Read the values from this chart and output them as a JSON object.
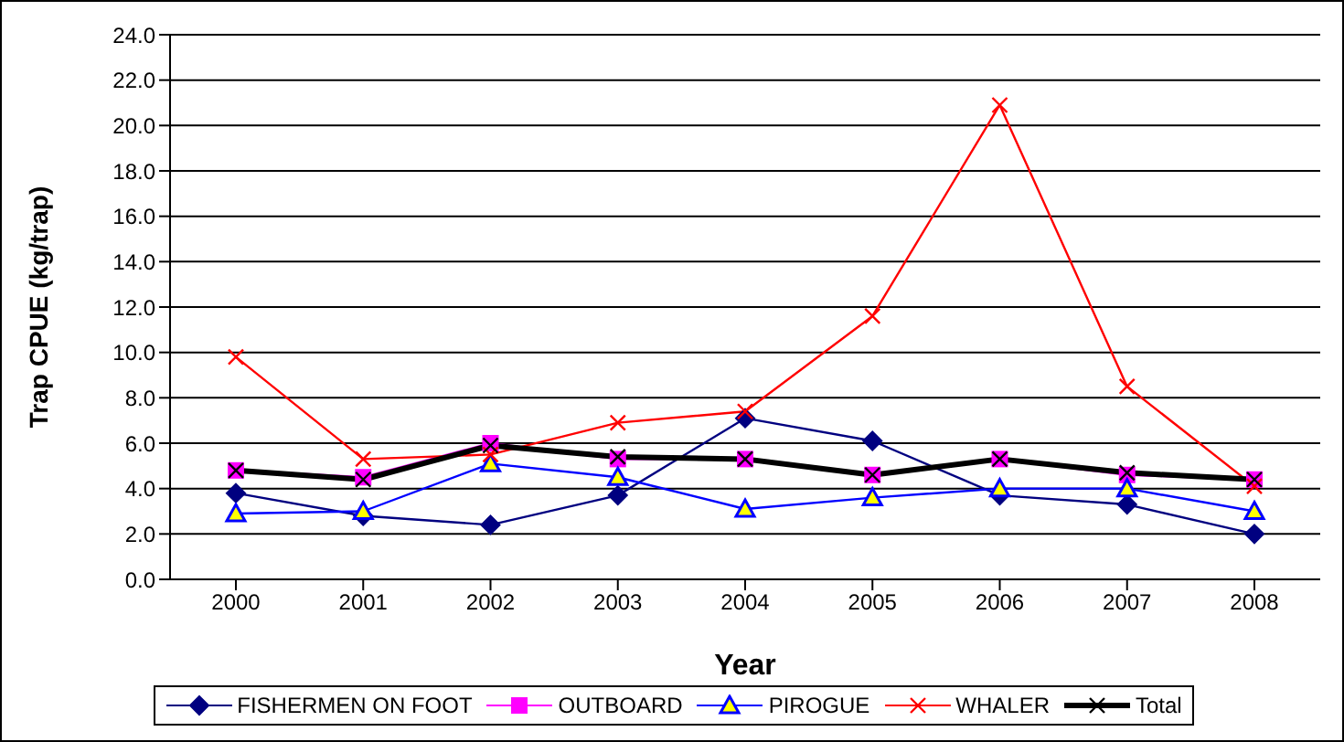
{
  "chart_data": {
    "type": "line",
    "xlabel": "Year",
    "ylabel": "Trap CPUE (kg/trap)",
    "categories": [
      "2000",
      "2001",
      "2002",
      "2003",
      "2004",
      "2005",
      "2006",
      "2007",
      "2008"
    ],
    "ylim": [
      0,
      24
    ],
    "yticks": [
      {
        "value": 0,
        "label": "0.0"
      },
      {
        "value": 2,
        "label": "2.0"
      },
      {
        "value": 4,
        "label": "4.0"
      },
      {
        "value": 6,
        "label": "6.0"
      },
      {
        "value": 8,
        "label": "8.0"
      },
      {
        "value": 10,
        "label": "10.0"
      },
      {
        "value": 12,
        "label": "12.0"
      },
      {
        "value": 14,
        "label": "14.0"
      },
      {
        "value": 16,
        "label": "16.0"
      },
      {
        "value": 18,
        "label": "18.0"
      },
      {
        "value": 20,
        "label": "20.0"
      },
      {
        "value": 22,
        "label": "22.0"
      },
      {
        "value": 24,
        "label": "24.0"
      }
    ],
    "grid": "y",
    "legend": "bottom",
    "line_style": "solid",
    "series": [
      {
        "name": "FISHERMEN ON FOOT",
        "color": "#000080",
        "marker": "diamond",
        "values": [
          3.8,
          2.8,
          2.4,
          3.7,
          7.1,
          6.1,
          3.7,
          3.3,
          2.0
        ]
      },
      {
        "name": "OUTBOARD",
        "color": "#ff00ff",
        "marker": "square",
        "values": [
          4.8,
          4.5,
          6.0,
          5.3,
          5.3,
          4.6,
          5.3,
          4.6,
          4.4
        ]
      },
      {
        "name": "PIROGUE",
        "color": "#0000ff",
        "marker": "triangle",
        "values": [
          2.9,
          3.0,
          5.1,
          4.5,
          3.1,
          3.6,
          4.0,
          4.0,
          3.0
        ]
      },
      {
        "name": "WHALER",
        "color": "#ff0000",
        "marker": "cross",
        "values": [
          9.8,
          5.3,
          5.5,
          6.9,
          7.4,
          11.6,
          20.9,
          8.5,
          4.1
        ]
      },
      {
        "name": "Total",
        "color": "#000000",
        "marker": "cross",
        "values": [
          4.8,
          4.4,
          5.9,
          5.4,
          5.3,
          4.6,
          5.3,
          4.7,
          4.4
        ]
      }
    ]
  }
}
